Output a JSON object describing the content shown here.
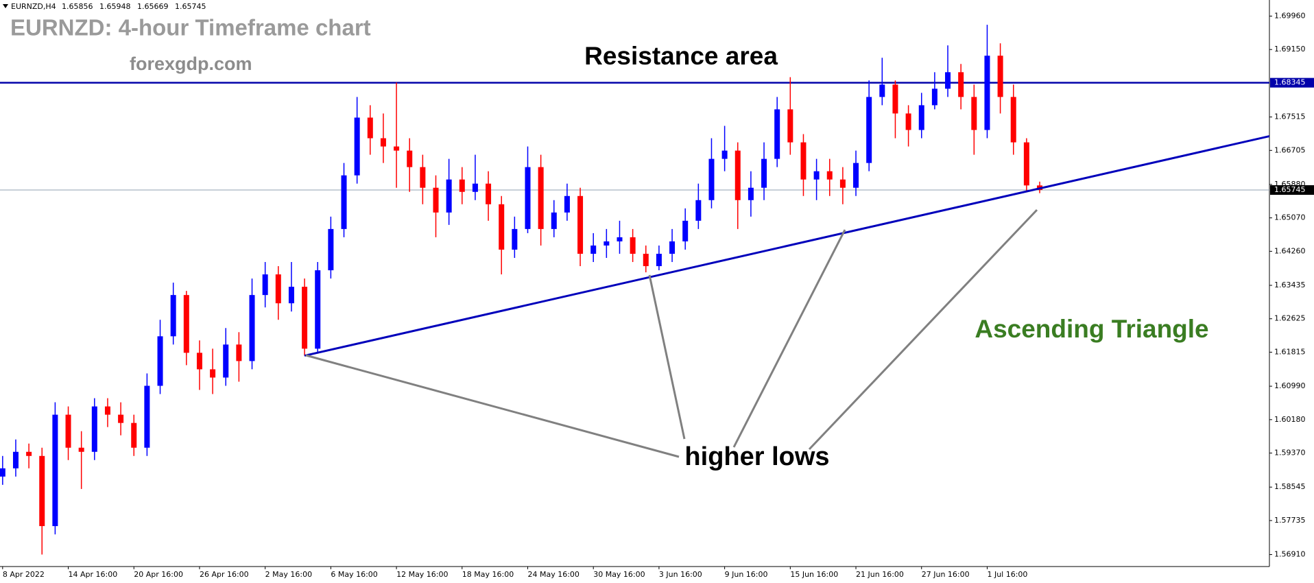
{
  "chart_data": {
    "type": "candlestick",
    "symbol": "EURNZD,H4",
    "title": "EURNZD: 4-hour Timeframe chart",
    "subtitle": "forexgdp.com",
    "annotations": {
      "resistance": "Resistance area",
      "lows": "higher lows",
      "pattern": "Ascending Triangle"
    },
    "x": [
      0,
      1,
      2,
      3,
      4,
      5,
      6,
      7,
      8,
      9,
      10,
      11,
      12,
      13,
      14,
      15,
      16,
      17,
      18,
      19,
      20,
      21,
      22,
      23,
      24,
      25,
      26,
      27,
      28,
      29,
      30,
      31,
      32,
      33,
      34,
      35,
      36,
      37,
      38,
      39,
      40,
      41,
      42,
      43,
      44,
      45,
      46,
      47,
      48,
      49,
      50,
      51,
      52,
      53,
      54,
      55,
      56,
      57,
      58,
      59,
      60,
      61,
      62,
      63,
      64,
      65,
      66,
      67,
      68,
      69,
      70,
      71,
      72,
      73,
      74,
      75,
      76,
      77,
      78,
      79
    ],
    "open": [
      1.588,
      1.59,
      1.594,
      1.593,
      1.576,
      1.603,
      1.595,
      1.594,
      1.605,
      1.603,
      1.601,
      1.595,
      1.61,
      1.622,
      1.632,
      1.618,
      1.614,
      1.612,
      1.62,
      1.616,
      1.632,
      1.637,
      1.63,
      1.634,
      1.619,
      1.638,
      1.648,
      1.661,
      1.675,
      1.67,
      1.668,
      1.667,
      1.663,
      1.658,
      1.652,
      1.66,
      1.657,
      1.659,
      1.654,
      1.643,
      1.648,
      1.663,
      1.648,
      1.652,
      1.656,
      1.642,
      1.644,
      1.645,
      1.646,
      1.642,
      1.639,
      1.642,
      1.645,
      1.65,
      1.655,
      1.665,
      1.667,
      1.655,
      1.658,
      1.665,
      1.677,
      1.669,
      1.66,
      1.662,
      1.66,
      1.658,
      1.664,
      1.68,
      1.683,
      1.676,
      1.672,
      1.678,
      1.682,
      1.686,
      1.68,
      1.672,
      1.69,
      1.68,
      1.669,
      1.65856
    ],
    "high": [
      1.593,
      1.597,
      1.596,
      1.595,
      1.606,
      1.605,
      1.599,
      1.607,
      1.607,
      1.606,
      1.603,
      1.613,
      1.626,
      1.635,
      1.633,
      1.621,
      1.619,
      1.624,
      1.623,
      1.636,
      1.64,
      1.639,
      1.64,
      1.636,
      1.64,
      1.651,
      1.664,
      1.68,
      1.678,
      1.676,
      1.6835,
      1.67,
      1.666,
      1.661,
      1.665,
      1.663,
      1.666,
      1.662,
      1.656,
      1.651,
      1.668,
      1.666,
      1.655,
      1.659,
      1.658,
      1.647,
      1.648,
      1.65,
      1.648,
      1.644,
      1.644,
      1.648,
      1.653,
      1.659,
      1.67,
      1.673,
      1.669,
      1.662,
      1.669,
      1.68,
      1.6848,
      1.671,
      1.665,
      1.665,
      1.663,
      1.667,
      1.684,
      1.6895,
      1.684,
      1.678,
      1.681,
      1.686,
      1.6925,
      1.688,
      1.683,
      1.6975,
      1.693,
      1.683,
      1.67,
      1.65948
    ],
    "low": [
      1.586,
      1.588,
      1.59,
      1.5691,
      1.574,
      1.592,
      1.585,
      1.592,
      1.6,
      1.598,
      1.593,
      1.593,
      1.608,
      1.62,
      1.615,
      1.609,
      1.608,
      1.61,
      1.611,
      1.614,
      1.629,
      1.626,
      1.628,
      1.6173,
      1.618,
      1.636,
      1.646,
      1.659,
      1.666,
      1.664,
      1.658,
      1.657,
      1.654,
      1.646,
      1.649,
      1.654,
      1.655,
      1.65,
      1.637,
      1.641,
      1.647,
      1.644,
      1.646,
      1.65,
      1.639,
      1.64,
      1.641,
      1.642,
      1.64,
      1.6375,
      1.638,
      1.64,
      1.643,
      1.648,
      1.653,
      1.662,
      1.648,
      1.651,
      1.655,
      1.663,
      1.666,
      1.656,
      1.655,
      1.656,
      1.654,
      1.656,
      1.662,
      1.678,
      1.67,
      1.668,
      1.67,
      1.677,
      1.68,
      1.677,
      1.666,
      1.67,
      1.676,
      1.666,
      1.657,
      1.65669
    ],
    "close": [
      1.59,
      1.594,
      1.593,
      1.576,
      1.603,
      1.595,
      1.594,
      1.605,
      1.603,
      1.601,
      1.595,
      1.61,
      1.622,
      1.632,
      1.618,
      1.614,
      1.612,
      1.62,
      1.616,
      1.632,
      1.637,
      1.63,
      1.634,
      1.619,
      1.638,
      1.648,
      1.661,
      1.675,
      1.67,
      1.668,
      1.667,
      1.663,
      1.658,
      1.652,
      1.66,
      1.657,
      1.659,
      1.654,
      1.643,
      1.648,
      1.663,
      1.648,
      1.652,
      1.656,
      1.642,
      1.644,
      1.645,
      1.646,
      1.642,
      1.639,
      1.642,
      1.645,
      1.65,
      1.655,
      1.665,
      1.667,
      1.655,
      1.658,
      1.665,
      1.677,
      1.669,
      1.66,
      1.662,
      1.66,
      1.658,
      1.664,
      1.68,
      1.683,
      1.676,
      1.672,
      1.678,
      1.682,
      1.686,
      1.68,
      1.672,
      1.69,
      1.68,
      1.669,
      1.65856,
      1.65745
    ],
    "up_color": "#0000ff",
    "down_color": "#ff0000",
    "xlim": [
      -0.2,
      96.5
    ],
    "ylim": [
      1.5662,
      1.7035
    ],
    "xticks": [
      {
        "value": 0,
        "label": "8 Apr 2022"
      },
      {
        "value": 5,
        "label": "14 Apr 16:00"
      },
      {
        "value": 10,
        "label": "20 Apr 16:00"
      },
      {
        "value": 15,
        "label": "26 Apr 16:00"
      },
      {
        "value": 20,
        "label": "2 May 16:00"
      },
      {
        "value": 25,
        "label": "6 May 16:00"
      },
      {
        "value": 30,
        "label": "12 May 16:00"
      },
      {
        "value": 35,
        "label": "18 May 16:00"
      },
      {
        "value": 40,
        "label": "24 May 16:00"
      },
      {
        "value": 45,
        "label": "30 May 16:00"
      },
      {
        "value": 50,
        "label": "3 Jun 16:00"
      },
      {
        "value": 55,
        "label": "9 Jun 16:00"
      },
      {
        "value": 60,
        "label": "15 Jun 16:00"
      },
      {
        "value": 65,
        "label": "21 Jun 16:00"
      },
      {
        "value": 70,
        "label": "27 Jun 16:00"
      },
      {
        "value": 75,
        "label": "1 Jul 16:00"
      }
    ],
    "yticks": [
      {
        "value": 1.6996,
        "label": "1.69960"
      },
      {
        "value": 1.6915,
        "label": "1.69150"
      },
      1.67515,
      1.66705,
      {
        "value": 1.6588,
        "label": "1.65880"
      },
      {
        "value": 1.6507,
        "label": "1.65070"
      },
      {
        "value": 1.6426,
        "label": "1.64260"
      },
      1.63435,
      1.62625,
      1.61815,
      {
        "value": 1.6099,
        "label": "1.60990"
      },
      {
        "value": 1.6018,
        "label": "1.60180"
      },
      {
        "value": 1.5937,
        "label": "1.59370"
      },
      1.58545,
      1.57735,
      {
        "value": 1.5691,
        "label": "1.56910"
      }
    ],
    "hlines": [
      {
        "value": 1.68345,
        "color": "#0000aa",
        "label_bg": "#0000aa"
      },
      {
        "value": 1.65745,
        "color": "#90a0b0",
        "label_bg": "#000000"
      }
    ],
    "trendline": {
      "x": [
        23,
        96.5
      ],
      "y": [
        1.6173,
        1.6705
      ],
      "color": "#0000bb"
    },
    "grid": false
  }
}
